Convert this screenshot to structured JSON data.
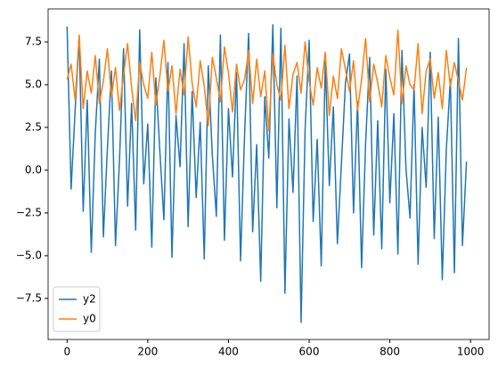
{
  "chart_data": {
    "type": "line",
    "x": [
      0,
      10,
      20,
      30,
      40,
      50,
      60,
      70,
      80,
      90,
      100,
      110,
      120,
      130,
      140,
      150,
      160,
      170,
      180,
      190,
      200,
      210,
      220,
      230,
      240,
      250,
      260,
      270,
      280,
      290,
      300,
      310,
      320,
      330,
      340,
      350,
      360,
      370,
      380,
      390,
      400,
      410,
      420,
      430,
      440,
      450,
      460,
      470,
      480,
      490,
      500,
      510,
      520,
      530,
      540,
      550,
      560,
      570,
      580,
      590,
      600,
      610,
      620,
      630,
      640,
      650,
      660,
      670,
      680,
      690,
      700,
      710,
      720,
      730,
      740,
      750,
      760,
      770,
      780,
      790,
      800,
      810,
      820,
      830,
      840,
      850,
      860,
      870,
      880,
      890,
      900,
      910,
      920,
      930,
      940,
      950,
      960,
      970,
      980,
      990
    ],
    "series": [
      {
        "name": "y2",
        "color": "#1f77b4",
        "values": [
          8.4,
          -1.1,
          3.5,
          7.8,
          -2.4,
          4.1,
          -4.8,
          2.2,
          6.5,
          -3.9,
          1.3,
          5.8,
          -4.4,
          0.6,
          7.1,
          -2.1,
          3.9,
          -3.5,
          8.2,
          -0.8,
          2.7,
          -4.5,
          5.4,
          1.1,
          -2.9,
          6.3,
          -5.1,
          3.2,
          0.2,
          7.4,
          -3.3,
          4.6,
          -1.6,
          2.8,
          -5.2,
          6.1,
          0.9,
          -2.7,
          7.9,
          -4.1,
          3.6,
          -0.4,
          5.7,
          -5.3,
          2.1,
          8.0,
          -3.6,
          1.5,
          -6.5,
          4.3,
          0.7,
          8.5,
          -2.2,
          8.3,
          -7.2,
          3.0,
          -1.3,
          5.5,
          -8.9,
          2.4,
          7.6,
          -3.0,
          1.8,
          -5.6,
          6.4,
          -0.9,
          3.7,
          -4.3,
          0.4,
          5.1,
          6.8,
          -2.5,
          4.0,
          -5.7,
          1.6,
          6.6,
          -3.8,
          2.9,
          -4.6,
          5.9,
          -1.9,
          3.3,
          -4.9,
          7.0,
          0.1,
          -2.8,
          5.0,
          -5.5,
          2.5,
          -1.0,
          6.9,
          -4.0,
          3.1,
          -6.4,
          1.2,
          5.3,
          -6.0,
          7.7,
          -4.4,
          0.5
        ]
      },
      {
        "name": "y0",
        "color": "#ff7f0e",
        "values": [
          5.3,
          6.2,
          4.1,
          7.9,
          3.6,
          5.8,
          4.5,
          6.7,
          3.9,
          5.2,
          7.1,
          4.3,
          6.0,
          3.5,
          5.6,
          7.4,
          4.8,
          2.9,
          6.3,
          5.0,
          4.2,
          6.9,
          3.8,
          5.5,
          7.6,
          4.6,
          6.1,
          3.3,
          5.9,
          4.4,
          7.8,
          5.1,
          3.7,
          6.4,
          4.9,
          2.6,
          6.6,
          5.4,
          4.0,
          7.2,
          5.7,
          3.4,
          6.2,
          4.7,
          5.3,
          7.0,
          3.9,
          6.5,
          4.3,
          5.8,
          2.3,
          6.8,
          5.0,
          4.1,
          7.3,
          3.6,
          5.6,
          6.3,
          4.5,
          7.5,
          5.2,
          3.8,
          6.0,
          4.8,
          6.9,
          3.2,
          5.5,
          4.2,
          7.1,
          5.9,
          4.6,
          6.4,
          3.5,
          5.3,
          7.7,
          4.0,
          6.2,
          5.1,
          3.7,
          6.7,
          5.4,
          4.4,
          8.2,
          3.9,
          6.1,
          5.0,
          4.7,
          7.4,
          3.3,
          5.8,
          6.5,
          4.2,
          5.7,
          3.6,
          7.0,
          4.9,
          6.3,
          5.2,
          4.1,
          6.0
        ]
      }
    ],
    "xlim": [
      -47,
      1046
    ],
    "ylim": [
      -9.9,
      9.43
    ],
    "xticks": [
      0,
      200,
      400,
      600,
      800,
      1000
    ],
    "yticks": [
      {
        "value": -7.5,
        "label": "−7.5"
      },
      {
        "value": -5,
        "label": "−5.0"
      },
      {
        "value": -2.5,
        "label": "−2.5"
      },
      {
        "value": 0,
        "label": "0.0"
      },
      {
        "value": 2.5,
        "label": "2.5"
      },
      {
        "value": 5,
        "label": "5.0"
      },
      {
        "value": 7.5,
        "label": "7.5"
      }
    ],
    "legend": "lower left"
  }
}
